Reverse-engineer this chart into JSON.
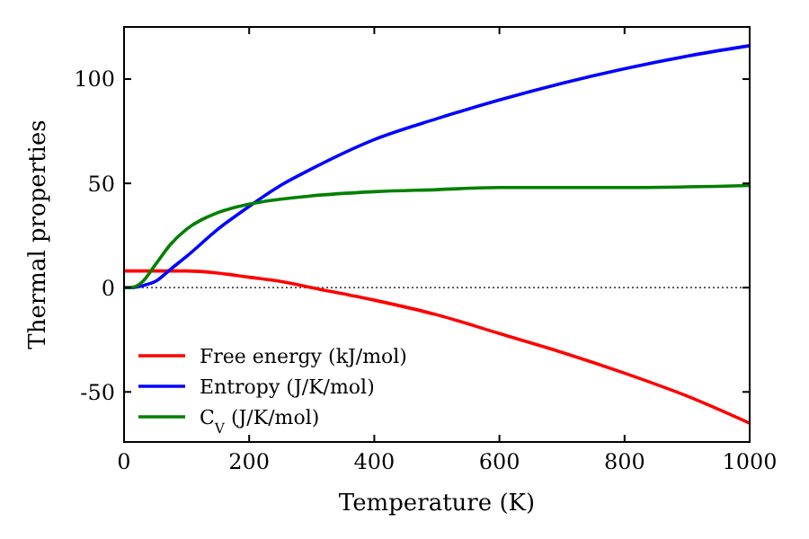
{
  "chart_data": {
    "type": "line",
    "xlabel": "Temperature (K)",
    "ylabel": "Thermal properties",
    "xlim": [
      0,
      1000
    ],
    "ylim": [
      -74,
      125
    ],
    "xticks": [
      0,
      200,
      400,
      600,
      800,
      1000
    ],
    "yticks": [
      -50,
      0,
      50,
      100
    ],
    "legend": "bottom left",
    "ref_lines": [
      {
        "axis": "y",
        "value": 0,
        "color": "#000000",
        "line_style": "dotted"
      }
    ],
    "series": [
      {
        "name": "Free energy (kJ/mol)",
        "color": "#ff0000",
        "x": [
          0,
          50,
          100,
          150,
          200,
          250,
          300,
          400,
          500,
          600,
          700,
          800,
          900,
          1000
        ],
        "values": [
          8,
          8,
          8,
          7,
          5,
          3,
          0,
          -6,
          -13,
          -22,
          -31,
          -41,
          -52,
          -65
        ]
      },
      {
        "name": "Entropy (J/K/mol)",
        "color": "#0000ff",
        "x": [
          0,
          10,
          30,
          50,
          75,
          100,
          150,
          200,
          250,
          300,
          400,
          500,
          600,
          700,
          800,
          900,
          1000
        ],
        "values": [
          0,
          0,
          1,
          3,
          9,
          15,
          28,
          39,
          49,
          57,
          71,
          81,
          90,
          98,
          105,
          111,
          116
        ]
      },
      {
        "name": "C$_{V}$ (J/K/mol)",
        "color": "#008000",
        "x": [
          0,
          10,
          30,
          50,
          75,
          100,
          150,
          200,
          300,
          400,
          500,
          600,
          800,
          1000
        ],
        "values": [
          0,
          0,
          3,
          11,
          21,
          28,
          36,
          40,
          44,
          46,
          47,
          48,
          48,
          49
        ]
      }
    ]
  }
}
